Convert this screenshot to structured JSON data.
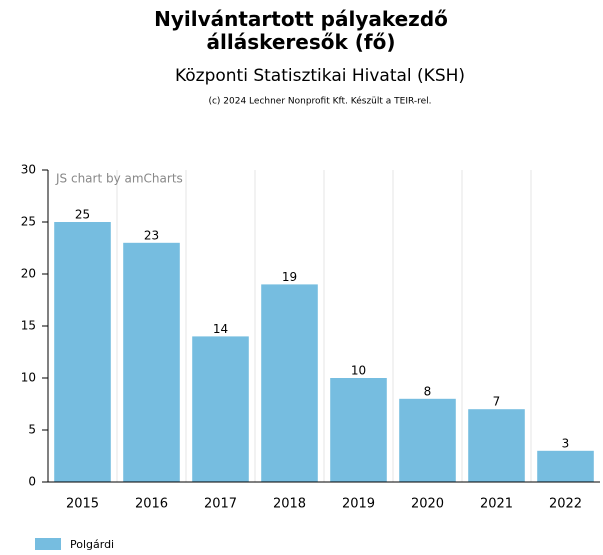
{
  "chart_data": {
    "type": "bar",
    "title": "Nyilvántartott pályakezdő álláskeresők (fő)",
    "subtitle": "Központi Statisztikai Hivatal (KSH)",
    "note": "(c) 2024 Lechner Nonprofit Kft. Készült a TEIR-rel.",
    "watermark": "JS chart by amCharts",
    "categories": [
      "2015",
      "2016",
      "2017",
      "2018",
      "2019",
      "2020",
      "2021",
      "2022"
    ],
    "series": [
      {
        "name": "Polgárdi",
        "color": "#76bde0",
        "values": [
          25,
          23,
          14,
          19,
          10,
          8,
          7,
          3
        ]
      }
    ],
    "ylim": [
      0,
      30
    ],
    "yticks": [
      0,
      5,
      10,
      15,
      20,
      25,
      30
    ],
    "grid": true
  }
}
